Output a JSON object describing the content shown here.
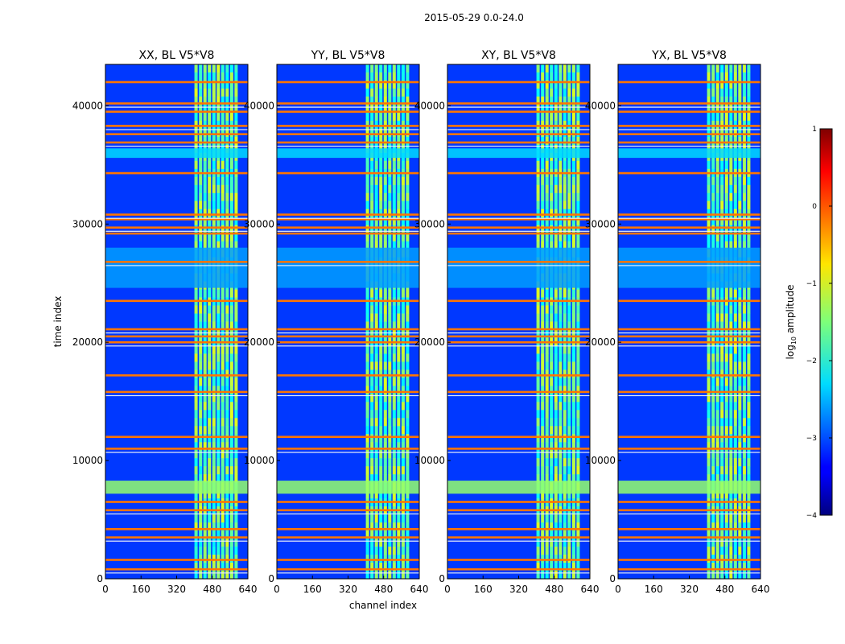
{
  "figure": {
    "suptitle": "2015-05-29 0.0-24.0"
  },
  "colorbar": {
    "label_prefix": "log",
    "label_sub": "10",
    "label_suffix": " amplitude",
    "range": [
      -4,
      1
    ],
    "ticks": [
      1,
      0,
      -1,
      -2,
      -3,
      -4
    ],
    "tick_labels": [
      "1",
      "0",
      "−1",
      "−2",
      "−3",
      "−4"
    ],
    "colormap": "jet"
  },
  "chart_data": [
    {
      "type": "heatmap",
      "title": "XX, BL V5*V8",
      "xlabel": "",
      "ylabel": "time index",
      "xlim": [
        0,
        640
      ],
      "ylim": [
        0,
        43500
      ],
      "xticks": [
        0,
        160,
        320,
        480,
        640
      ],
      "yticks": [
        0,
        10000,
        20000,
        30000,
        40000
      ]
    },
    {
      "type": "heatmap",
      "title": "YY, BL V5*V8",
      "xlabel": "channel index",
      "ylabel": "",
      "xlim": [
        0,
        640
      ],
      "ylim": [
        0,
        43500
      ],
      "xticks": [
        0,
        160,
        320,
        480,
        640
      ],
      "yticks": [
        0,
        10000,
        20000,
        30000,
        40000
      ]
    },
    {
      "type": "heatmap",
      "title": "XY, BL V5*V8",
      "xlabel": "",
      "ylabel": "",
      "xlim": [
        0,
        640
      ],
      "ylim": [
        0,
        43500
      ],
      "xticks": [
        0,
        160,
        320,
        480,
        640
      ],
      "yticks": [
        0,
        10000,
        20000,
        30000,
        40000
      ]
    },
    {
      "type": "heatmap",
      "title": "YX, BL V5*V8",
      "xlabel": "",
      "ylabel": "",
      "xlim": [
        0,
        640
      ],
      "ylim": [
        0,
        43500
      ],
      "xticks": [
        0,
        160,
        320,
        480,
        640
      ],
      "yticks": [
        0,
        10000,
        20000,
        30000,
        40000
      ]
    }
  ],
  "features": {
    "bright_band_channels": [
      400,
      600
    ],
    "uniform_bands": [
      [
        7200,
        8300,
        -1.4
      ],
      [
        35600,
        36400,
        -2.3
      ],
      [
        24600,
        28000,
        -2.6
      ]
    ],
    "flag_rows": [
      800,
      1600,
      3500,
      4200,
      5800,
      6500,
      11000,
      12000,
      15800,
      17200,
      20000,
      20500,
      21100,
      23500,
      26800,
      29200,
      29700,
      30400,
      30800,
      34300,
      36900,
      37600,
      38300,
      39500,
      40200,
      42000
    ]
  }
}
